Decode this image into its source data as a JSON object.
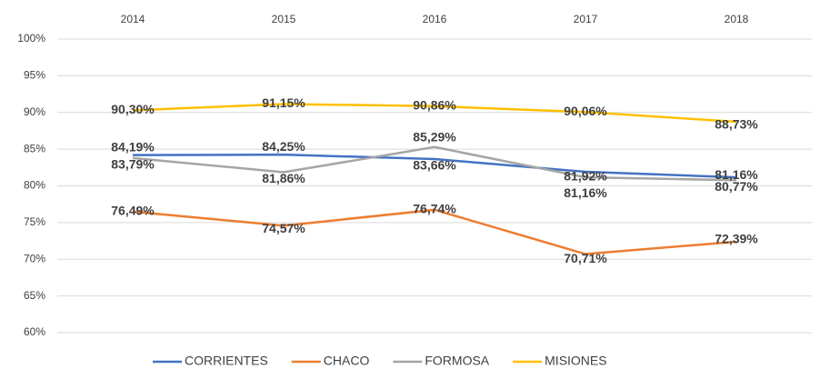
{
  "chart_data": {
    "type": "line",
    "categories": [
      "2014",
      "2015",
      "2016",
      "2017",
      "2018"
    ],
    "series": [
      {
        "name": "CORRIENTES",
        "color": "#4472c4",
        "values": [
          84.19,
          84.25,
          83.66,
          81.92,
          81.16
        ],
        "value_labels": [
          "84,19%",
          "84,25%",
          "83,66%",
          "81,92%",
          "81,16%"
        ]
      },
      {
        "name": "CHACO",
        "color": "#ed7d31",
        "values": [
          76.49,
          74.57,
          76.74,
          70.71,
          72.39
        ],
        "value_labels": [
          "76,49%",
          "74,57%",
          "76,74%",
          "70,71%",
          "72,39%"
        ]
      },
      {
        "name": "FORMOSA",
        "color": "#a5a5a5",
        "values": [
          83.79,
          81.86,
          85.29,
          81.16,
          80.77
        ],
        "value_labels": [
          "83,79%",
          "81,86%",
          "85,29%",
          "81,16%",
          "80,77%"
        ]
      },
      {
        "name": "MISIONES",
        "color": "#ffc000",
        "values": [
          90.3,
          91.15,
          90.86,
          90.06,
          88.73
        ],
        "value_labels": [
          "90,30%",
          "91,15%",
          "90,86%",
          "90,06%",
          "88,73%"
        ]
      }
    ],
    "ylim": [
      60,
      100
    ],
    "yticks": [
      {
        "value": 60,
        "label": "60%"
      },
      {
        "value": 65,
        "label": "65%"
      },
      {
        "value": 70,
        "label": "70%"
      },
      {
        "value": 75,
        "label": "75%"
      },
      {
        "value": 80,
        "label": "80%"
      },
      {
        "value": 85,
        "label": "85%"
      },
      {
        "value": 90,
        "label": "90%"
      },
      {
        "value": 95,
        "label": "95%"
      },
      {
        "value": 100,
        "label": "100%"
      }
    ],
    "grid": true,
    "legend": "bottom"
  }
}
